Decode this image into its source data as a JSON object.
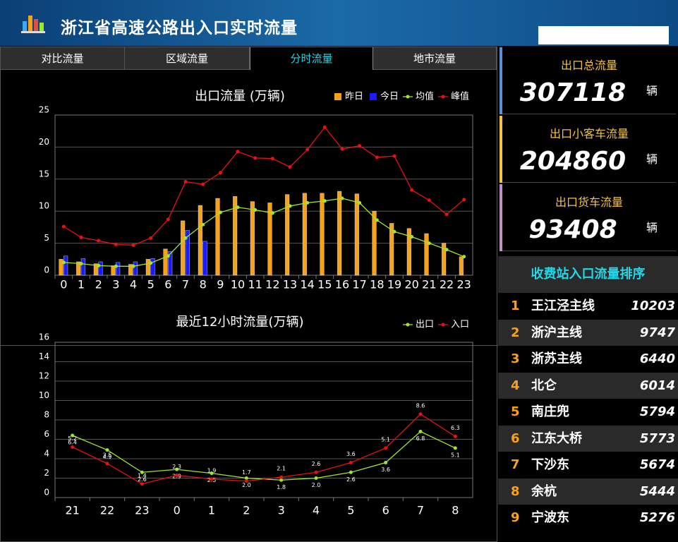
{
  "header": {
    "title": "浙江省高速公路出入口实时流量"
  },
  "tabs": [
    "对比流量",
    "区域流量",
    "分时流量",
    "地市流量"
  ],
  "stats": [
    {
      "label": "出口总流量",
      "value": 307118,
      "unit": "辆"
    },
    {
      "label": "出口小客车流量",
      "value": 204860,
      "unit": "辆"
    },
    {
      "label": "出口货车流量",
      "value": 93408,
      "unit": "辆"
    }
  ],
  "ranking": {
    "title": "收费站入口流量排序",
    "rows": [
      {
        "rank": 1,
        "name": "王江泾主线",
        "value": 10203
      },
      {
        "rank": 2,
        "name": "浙沪主线",
        "value": 9747
      },
      {
        "rank": 3,
        "name": "浙苏主线",
        "value": 6440
      },
      {
        "rank": 4,
        "name": "北仑",
        "value": 6014
      },
      {
        "rank": 5,
        "name": "南庄兜",
        "value": 5794
      },
      {
        "rank": 6,
        "name": "江东大桥",
        "value": 5773
      },
      {
        "rank": 7,
        "name": "下沙东",
        "value": 5674
      },
      {
        "rank": 8,
        "name": "余杭",
        "value": 5444
      },
      {
        "rank": 9,
        "name": "宁波东",
        "value": 5276
      }
    ]
  },
  "chart_data": [
    {
      "type": "bar",
      "title": "出口流量 (万辆)",
      "categories": [
        "0",
        "1",
        "2",
        "3",
        "4",
        "5",
        "6",
        "7",
        "8",
        "9",
        "10",
        "11",
        "12",
        "13",
        "14",
        "15",
        "16",
        "17",
        "18",
        "19",
        "20",
        "21",
        "22",
        "23"
      ],
      "series": [
        {
          "name": "昨日",
          "type": "bar",
          "color": "#f7a21a",
          "values": [
            2.5,
            2.1,
            1.8,
            1.5,
            1.7,
            2.5,
            4.1,
            8.5,
            10.9,
            12.0,
            12.3,
            11.5,
            11.3,
            12.6,
            12.8,
            12.8,
            13.1,
            12.7,
            10.0,
            8.1,
            7.3,
            6.5,
            5.0,
            2.9
          ]
        },
        {
          "name": "今日",
          "type": "bar",
          "color": "#1a1aff",
          "values": [
            3.0,
            2.6,
            2.1,
            2.0,
            2.1,
            2.6,
            3.7,
            7.0,
            5.3,
            null,
            null,
            null,
            null,
            null,
            null,
            null,
            null,
            null,
            null,
            null,
            null,
            null,
            null,
            null
          ]
        },
        {
          "name": "均值",
          "type": "line",
          "color": "#9be82c",
          "values": [
            2.0,
            1.8,
            1.5,
            1.4,
            1.4,
            1.9,
            3.0,
            5.8,
            7.9,
            9.8,
            10.6,
            10.2,
            9.7,
            10.8,
            11.3,
            11.6,
            12.0,
            11.3,
            8.6,
            6.8,
            6.0,
            5.0,
            4.0,
            2.9
          ]
        },
        {
          "name": "峰值",
          "type": "line",
          "color": "#e81010",
          "values": [
            7.6,
            5.9,
            5.4,
            4.8,
            4.7,
            5.8,
            8.7,
            14.6,
            14.2,
            16.0,
            19.3,
            18.3,
            18.2,
            16.9,
            19.6,
            23.1,
            19.7,
            20.2,
            18.4,
            18.6,
            13.3,
            11.7,
            9.5,
            11.8
          ]
        }
      ],
      "ylim": [
        0,
        25
      ],
      "yticks": [
        0,
        5,
        10,
        15,
        20,
        25
      ],
      "grid": true,
      "legend": "top-right"
    },
    {
      "type": "line",
      "title": "最近12小时流量(万辆)",
      "categories": [
        "21",
        "22",
        "23",
        "0",
        "1",
        "2",
        "3",
        "4",
        "5",
        "6",
        "7",
        "8"
      ],
      "series": [
        {
          "name": "出口",
          "type": "line",
          "color": "#9be82c",
          "values": [
            6.4,
            4.9,
            2.6,
            2.9,
            2.5,
            2.0,
            1.8,
            2.0,
            2.6,
            3.6,
            6.8,
            5.1
          ],
          "value_labels": [
            "6.4",
            "4.9",
            "2.6",
            "2.9",
            "2.5",
            "2.0",
            "1.8",
            "2.0",
            "2.6",
            "3.6",
            "6.8",
            "5.1"
          ]
        },
        {
          "name": "入口",
          "type": "line",
          "color": "#e81010",
          "values": [
            5.2,
            3.5,
            1.4,
            2.3,
            1.9,
            1.7,
            2.1,
            2.6,
            3.6,
            5.1,
            8.6,
            6.3
          ],
          "value_labels": [
            "5.2",
            "3.5",
            "1.4",
            "2.3",
            "1.9",
            "1.7",
            "2.1",
            "2.6",
            "3.6",
            "5.1",
            "8.6",
            "6.3"
          ]
        }
      ],
      "ylim": [
        0,
        16
      ],
      "yticks": [
        0,
        2,
        4,
        6,
        8,
        10,
        12,
        14,
        16
      ],
      "grid": true,
      "legend": "top-right"
    }
  ]
}
